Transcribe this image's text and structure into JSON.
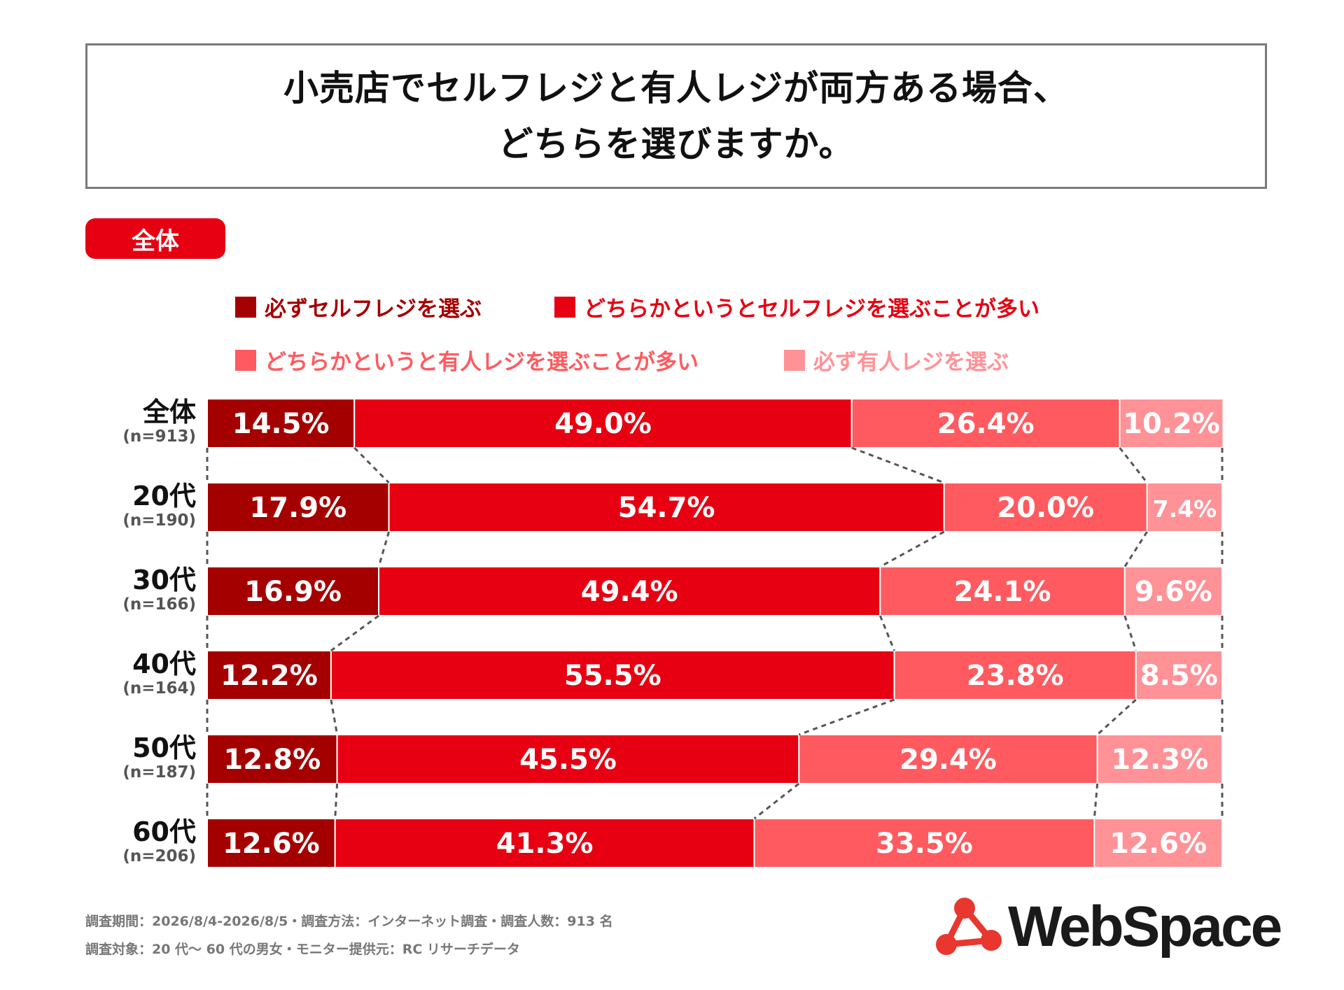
{
  "title": {
    "line1": "小売店でセルフレジと有人レジが両方ある場合、",
    "line2": "どちらを選びますか。"
  },
  "badge": "全体",
  "chart_data": {
    "type": "bar",
    "orientation": "horizontal",
    "stacked": true,
    "percent": true,
    "xlim": [
      0,
      100
    ],
    "grid": false,
    "legend_position": "top",
    "categories": [
      {
        "label": "全体",
        "n": "(n=913)"
      },
      {
        "label": "20代",
        "n": "(n=190)"
      },
      {
        "label": "30代",
        "n": "(n=166)"
      },
      {
        "label": "40代",
        "n": "(n=164)"
      },
      {
        "label": "50代",
        "n": "(n=187)"
      },
      {
        "label": "60代",
        "n": "(n=206)"
      }
    ],
    "series": [
      {
        "name": "必ずセルフレジを選ぶ",
        "color": "#a50000",
        "values": [
          14.5,
          17.9,
          16.9,
          12.2,
          12.8,
          12.6
        ]
      },
      {
        "name": "どちらかというとセルフレジを選ぶことが多い",
        "color": "#e60012",
        "values": [
          49.0,
          54.7,
          49.4,
          55.5,
          45.5,
          41.3
        ]
      },
      {
        "name": "どちらかというと有人レジを選ぶことが多い",
        "color": "#ff5a5f",
        "values": [
          26.4,
          20.0,
          24.1,
          23.8,
          29.4,
          33.5
        ]
      },
      {
        "name": "必ず有人レジを選ぶ",
        "color": "#ff9297",
        "values": [
          10.2,
          7.4,
          9.6,
          8.5,
          12.3,
          12.6
        ]
      }
    ],
    "connector_lines": "dashed"
  },
  "footnotes": {
    "line1": "調査期間：2026/8/4-2026/8/5・調査方法：インターネット調査・調査人数：913 名",
    "line2": "調査対象：20 代〜 60 代の男女・モニター提供元：RC リサーチデータ"
  },
  "logo": {
    "text": "WebSpace",
    "icon": "molecule-logo-icon",
    "color": "#e8372f"
  }
}
